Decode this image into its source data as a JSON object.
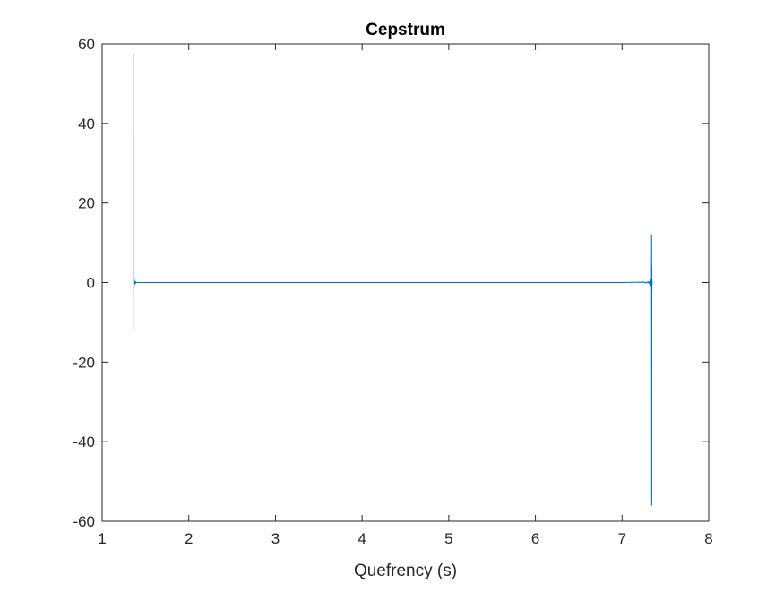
{
  "chart_data": {
    "type": "line",
    "title": "Cepstrum",
    "xlabel": "Quefrency (s)",
    "ylabel": "",
    "xlim": [
      1,
      8
    ],
    "ylim": [
      -60,
      60
    ],
    "xticks": [
      1,
      2,
      3,
      4,
      5,
      6,
      7,
      8
    ],
    "yticks": [
      -60,
      -40,
      -20,
      0,
      20,
      40,
      60
    ],
    "xtick_labels": [
      "1",
      "2",
      "3",
      "4",
      "5",
      "6",
      "7",
      "8"
    ],
    "ytick_labels": [
      "-60",
      "-40",
      "-20",
      "0",
      "20",
      "40",
      "60"
    ],
    "grid": false,
    "legend": "none",
    "line_color": "#0072BD",
    "series": [
      {
        "x": [
          1.365,
          1.3655,
          1.366,
          1.367,
          1.368,
          1.369,
          1.37,
          1.372,
          1.375,
          1.38,
          1.385,
          1.39,
          1.4,
          2.0,
          3.0,
          4.0,
          5.0,
          6.0,
          7.0,
          7.25,
          7.28,
          7.3,
          7.31,
          7.32,
          7.325,
          7.33,
          7.335,
          7.34,
          7.341,
          7.342,
          7.343,
          7.344,
          7.345,
          7.346,
          7.347
        ],
        "y": [
          0,
          57.5,
          -12,
          2,
          -1.5,
          1,
          -0.8,
          0.6,
          -0.4,
          0.3,
          -0.2,
          0.1,
          0,
          0,
          0,
          0,
          0,
          0,
          0,
          0.1,
          -0.1,
          0.2,
          -0.2,
          0.3,
          -0.4,
          0.6,
          -0.8,
          1.2,
          12,
          -56,
          4,
          -2,
          1,
          -0.5,
          0
        ]
      }
    ]
  }
}
